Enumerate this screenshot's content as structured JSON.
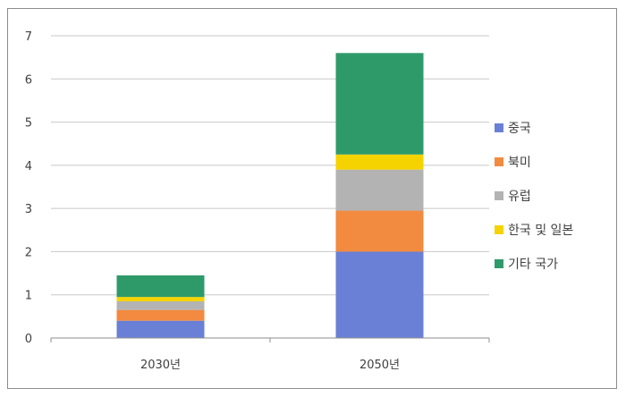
{
  "chart_data": {
    "type": "bar",
    "stacked": true,
    "categories": [
      "2030년",
      "2050년"
    ],
    "ylim": [
      0,
      7
    ],
    "yticks": [
      "0",
      "1",
      "2",
      "3",
      "4",
      "5",
      "6",
      "7"
    ],
    "grid": true,
    "legend_position": "right",
    "series": [
      {
        "name": "중국",
        "color": "#6a7fd6",
        "values": [
          0.4,
          2.0
        ]
      },
      {
        "name": "북미",
        "color": "#f28a40",
        "values": [
          0.25,
          0.95
        ]
      },
      {
        "name": "유럽",
        "color": "#b3b3b3",
        "values": [
          0.2,
          0.95
        ]
      },
      {
        "name": "한국 및 일본",
        "color": "#f5d300",
        "values": [
          0.1,
          0.35
        ]
      },
      {
        "name": "기타 국가",
        "color": "#2e9a6a",
        "values": [
          0.5,
          2.35
        ]
      }
    ]
  }
}
